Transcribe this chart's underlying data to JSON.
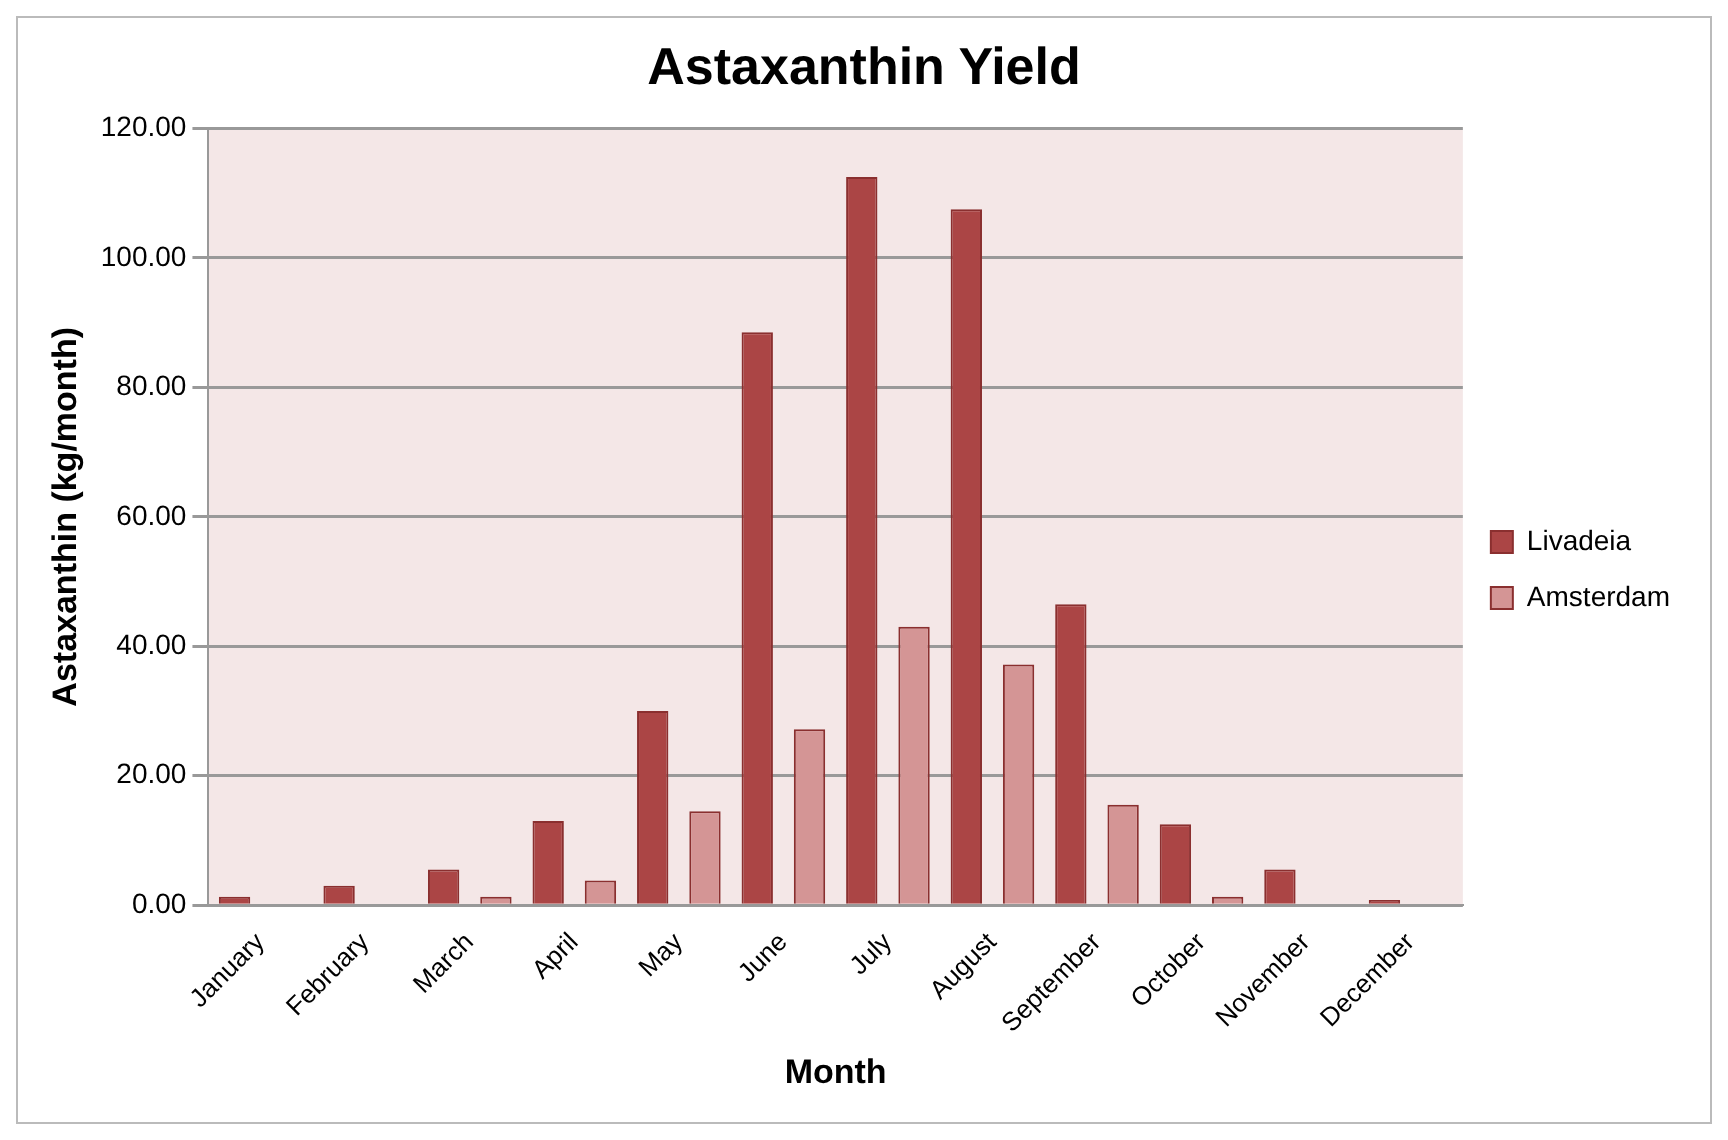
{
  "chart_data": {
    "type": "bar",
    "title": "Astaxanthin Yield",
    "xlabel": "Month",
    "ylabel": "Astaxanthin (kg/month)",
    "categories": [
      "January",
      "February",
      "March",
      "April",
      "May",
      "June",
      "July",
      "August",
      "September",
      "October",
      "November",
      "December"
    ],
    "series": [
      {
        "name": "Livadeia",
        "color": "#ab4545",
        "values": [
          1.3,
          3,
          5.5,
          13,
          30,
          88.5,
          112.5,
          107.5,
          46.5,
          12.5,
          5.5,
          0.8
        ]
      },
      {
        "name": "Amsterdam",
        "color": "#d49595",
        "values": [
          0,
          0,
          1.3,
          3.8,
          14.5,
          27.2,
          43,
          37.2,
          15.5,
          1.3,
          0,
          0
        ]
      }
    ],
    "ylim": [
      0,
      120
    ],
    "yticks": [
      {
        "value": 0,
        "label": "0.00"
      },
      {
        "value": 20,
        "label": "20.00"
      },
      {
        "value": 40,
        "label": "40.00"
      },
      {
        "value": 60,
        "label": "60.00"
      },
      {
        "value": 80,
        "label": "80.00"
      },
      {
        "value": 100,
        "label": "100.00"
      },
      {
        "value": 120,
        "label": "120.00"
      }
    ],
    "grid": "y",
    "legend": "right"
  }
}
